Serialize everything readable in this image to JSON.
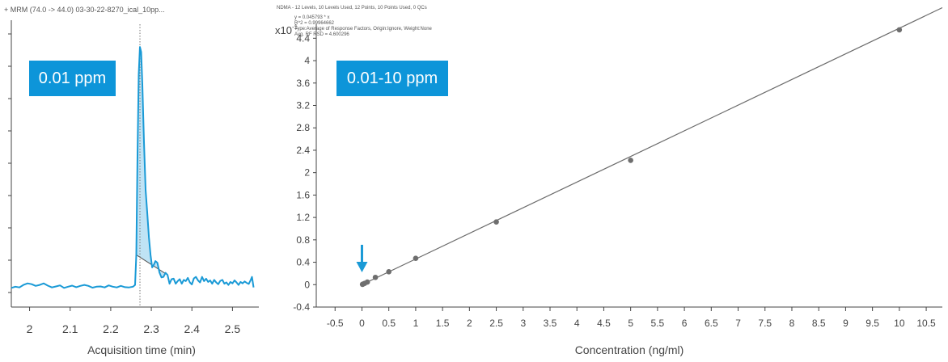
{
  "chart_data": [
    {
      "type": "line",
      "title": "+ MRM (74.0 -> 44.0) 03-30-22-8270_ical_10pp...",
      "xlabel": "Acquisition time (min)",
      "ylabel": "",
      "xlim": [
        1.955,
        2.565
      ],
      "ylim": [
        0,
        1
      ],
      "x_ticks": [
        "2",
        "2.1",
        "2.2",
        "2.3",
        "2.4",
        "2.5"
      ],
      "retention_time_marker": 2.272,
      "integration_start": 2.263,
      "integration_end": 2.34,
      "badge": "0.01 ppm",
      "series": [
        {
          "x": [
            1.955,
            1.965,
            1.975,
            1.985,
            1.995,
            2.005,
            2.015,
            2.025,
            2.035,
            2.045,
            2.055,
            2.065,
            2.075,
            2.085,
            2.095,
            2.105,
            2.115,
            2.125,
            2.135,
            2.145,
            2.155,
            2.165,
            2.175,
            2.185,
            2.195,
            2.205,
            2.215,
            2.225,
            2.235,
            2.245,
            2.255,
            2.26,
            2.263,
            2.266,
            2.269,
            2.272,
            2.275,
            2.278,
            2.282,
            2.286,
            2.29,
            2.294,
            2.298,
            2.302,
            2.306,
            2.31,
            2.315,
            2.32,
            2.325,
            2.33,
            2.335,
            2.34,
            2.345,
            2.35,
            2.355,
            2.36,
            2.365,
            2.37,
            2.375,
            2.38,
            2.385,
            2.39,
            2.395,
            2.4,
            2.405,
            2.41,
            2.415,
            2.42,
            2.425,
            2.43,
            2.435,
            2.44,
            2.445,
            2.45,
            2.455,
            2.46,
            2.465,
            2.47,
            2.475,
            2.48,
            2.485,
            2.49,
            2.495,
            2.5,
            2.505,
            2.51,
            2.515,
            2.52,
            2.525,
            2.53,
            2.535,
            2.54,
            2.545,
            2.548,
            2.552
          ],
          "y": [
            0.028,
            0.033,
            0.03,
            0.04,
            0.046,
            0.043,
            0.036,
            0.04,
            0.046,
            0.037,
            0.03,
            0.034,
            0.038,
            0.028,
            0.033,
            0.037,
            0.031,
            0.036,
            0.04,
            0.036,
            0.029,
            0.033,
            0.034,
            0.03,
            0.038,
            0.033,
            0.03,
            0.036,
            0.031,
            0.03,
            0.033,
            0.04,
            0.16,
            0.56,
            0.88,
            0.99,
            0.97,
            0.84,
            0.61,
            0.42,
            0.33,
            0.23,
            0.16,
            0.11,
            0.12,
            0.135,
            0.128,
            0.09,
            0.07,
            0.072,
            0.088,
            0.08,
            0.045,
            0.063,
            0.065,
            0.045,
            0.055,
            0.063,
            0.045,
            0.06,
            0.055,
            0.068,
            0.05,
            0.042,
            0.066,
            0.072,
            0.058,
            0.05,
            0.072,
            0.055,
            0.065,
            0.052,
            0.058,
            0.045,
            0.06,
            0.05,
            0.043,
            0.056,
            0.06,
            0.045,
            0.05,
            0.04,
            0.052,
            0.046,
            0.058,
            0.05,
            0.04,
            0.052,
            0.046,
            0.054,
            0.048,
            0.044,
            0.06,
            0.072,
            0.03
          ]
        }
      ]
    },
    {
      "type": "scatter",
      "title": "NDMA - 12 Levels, 10 Levels Used, 12 Points, 10 Points Used, 0 QCs",
      "equation": "y = 0.045793 * x",
      "r_squared": "R^2 = 0.99964662",
      "fit_type": "Type:Average of Response Factors, Origin:Ignore, Weight:None",
      "rsd": "Avg. RF RSD = 4.600296",
      "y_multiplier": "x10",
      "y_multiplier_exp": "-1",
      "xlabel": "Concentration (ng/ml)",
      "ylabel": "",
      "xlim": [
        -0.85,
        10.8
      ],
      "ylim": [
        -0.4,
        4.65
      ],
      "x_ticks": [
        "-0.5",
        "0",
        "0.5",
        "1",
        "1.5",
        "2",
        "2.5",
        "3",
        "3.5",
        "4",
        "4.5",
        "5",
        "5.5",
        "6",
        "6.5",
        "7",
        "7.5",
        "8",
        "8.5",
        "9",
        "9.5",
        "10",
        "10.5"
      ],
      "y_ticks": [
        "-0.4",
        "0",
        "0.4",
        "0.8",
        "1.2",
        "1.6",
        "2",
        "2.4",
        "2.8",
        "3.2",
        "3.6",
        "4",
        "4.4"
      ],
      "fit_slope": 0.45793,
      "badge": "0.01-10 ppm",
      "arrow_marker": {
        "x": 0,
        "y": 0.25
      },
      "points": {
        "x": [
          0.01,
          0.02,
          0.05,
          0.1,
          0.25,
          0.5,
          1,
          2.5,
          5,
          10
        ],
        "y": [
          0.005,
          0.01,
          0.023,
          0.046,
          0.13,
          0.23,
          0.47,
          1.12,
          2.22,
          4.55
        ]
      }
    }
  ]
}
